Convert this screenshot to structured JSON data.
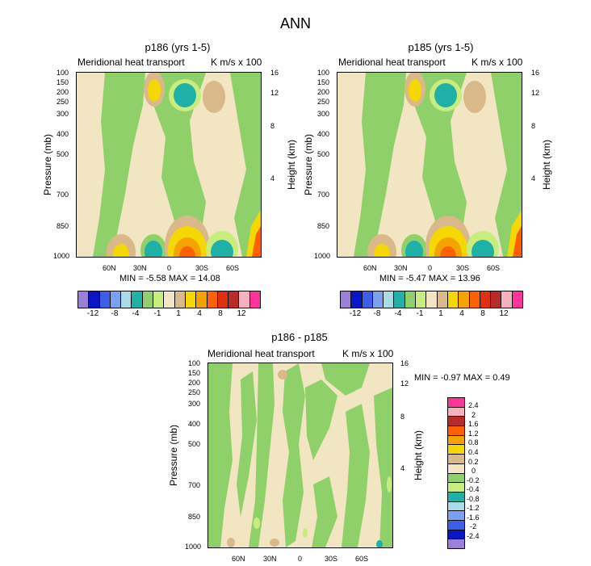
{
  "figure_title": "ANN",
  "chart_data": [
    {
      "type": "heatmap",
      "title": "p186 (yrs 1-5)",
      "subtitle_left": "Meridional heat transport",
      "subtitle_right": "K m/s x 100",
      "ylabel": "Pressure (mb)",
      "ylabel_right": "Height (km)",
      "y_ticks": [
        "100",
        "150",
        "200",
        "250",
        "300",
        "400",
        "500",
        "700",
        "850",
        "1000"
      ],
      "height_ticks": [
        "16",
        "12",
        "8",
        "4"
      ],
      "x_ticks": [
        "60N",
        "30N",
        "0",
        "30S",
        "60S"
      ],
      "min_label": "MIN = -5.58  MAX = 14.08",
      "min": -5.58,
      "max": 14.08,
      "colorbar_labels": [
        "-12",
        "-8",
        "-4",
        "-1",
        "1",
        "4",
        "8",
        "12"
      ]
    },
    {
      "type": "heatmap",
      "title": "p185 (yrs 1-5)",
      "subtitle_left": "Meridional heat transport",
      "subtitle_right": "K m/s x 100",
      "ylabel": "Pressure (mb)",
      "ylabel_right": "Height (km)",
      "y_ticks": [
        "100",
        "150",
        "200",
        "250",
        "300",
        "400",
        "500",
        "700",
        "850",
        "1000"
      ],
      "height_ticks": [
        "16",
        "12",
        "8",
        "4"
      ],
      "x_ticks": [
        "60N",
        "30N",
        "0",
        "30S",
        "60S"
      ],
      "min_label": "MIN = -5.47  MAX = 13.96",
      "min": -5.47,
      "max": 13.96,
      "colorbar_labels": [
        "-12",
        "-8",
        "-4",
        "-1",
        "1",
        "4",
        "8",
        "12"
      ]
    },
    {
      "type": "heatmap",
      "title": "p186 - p185",
      "subtitle_left": "Meridional heat transport",
      "subtitle_right": "K m/s x 100",
      "ylabel": "Pressure (mb)",
      "ylabel_right": "Height (km)",
      "y_ticks": [
        "100",
        "150",
        "200",
        "250",
        "300",
        "400",
        "500",
        "700",
        "850",
        "1000"
      ],
      "height_ticks": [
        "16",
        "12",
        "8",
        "4"
      ],
      "x_ticks": [
        "60N",
        "30N",
        "0",
        "30S",
        "60S"
      ],
      "min_label": "MIN = -0.97  MAX =  0.49",
      "min": -0.97,
      "max": 0.49,
      "colorbar_labels": [
        "2.4",
        "2",
        "1.6",
        "1.2",
        "0.8",
        "0.4",
        "0.2",
        "0",
        "-0.2",
        "-0.4",
        "-0.8",
        "-1.2",
        "-1.6",
        "-2",
        "-2.4"
      ]
    }
  ],
  "colors": {
    "scale": [
      "#9b7fd8",
      "#0b17c7",
      "#3d5fe8",
      "#7aa1ef",
      "#a9dce4",
      "#1fb0a8",
      "#8fd06a",
      "#c9ec7f",
      "#f2e6c2",
      "#d9b88a",
      "#f5d800",
      "#f5a300",
      "#ff6000",
      "#e03010",
      "#b92a2a",
      "#f7b0c0",
      "#ff3399"
    ],
    "small_scale": [
      "#9b7fd8",
      "#0b17c7",
      "#3d5fe8",
      "#7aa1ef",
      "#a9dce4",
      "#1fb0a8",
      "#8fd06a",
      "#c9ec7f",
      "#f2e6c2",
      "#d9b88a",
      "#f5d800",
      "#f5a300",
      "#ff6000",
      "#e03010",
      "#b92a2a",
      "#f7b0c0",
      "#ff3399"
    ],
    "diff_scale": [
      "#ff3399",
      "#f7b0c0",
      "#b92a2a",
      "#ff6000",
      "#f5a300",
      "#f5d800",
      "#d9b88a",
      "#f2e6c2",
      "#8fd06a",
      "#c9ec7f",
      "#1fb0a8",
      "#a9dce4",
      "#7aa1ef",
      "#3d5fe8",
      "#0b17c7",
      "#9b7fd8"
    ]
  }
}
